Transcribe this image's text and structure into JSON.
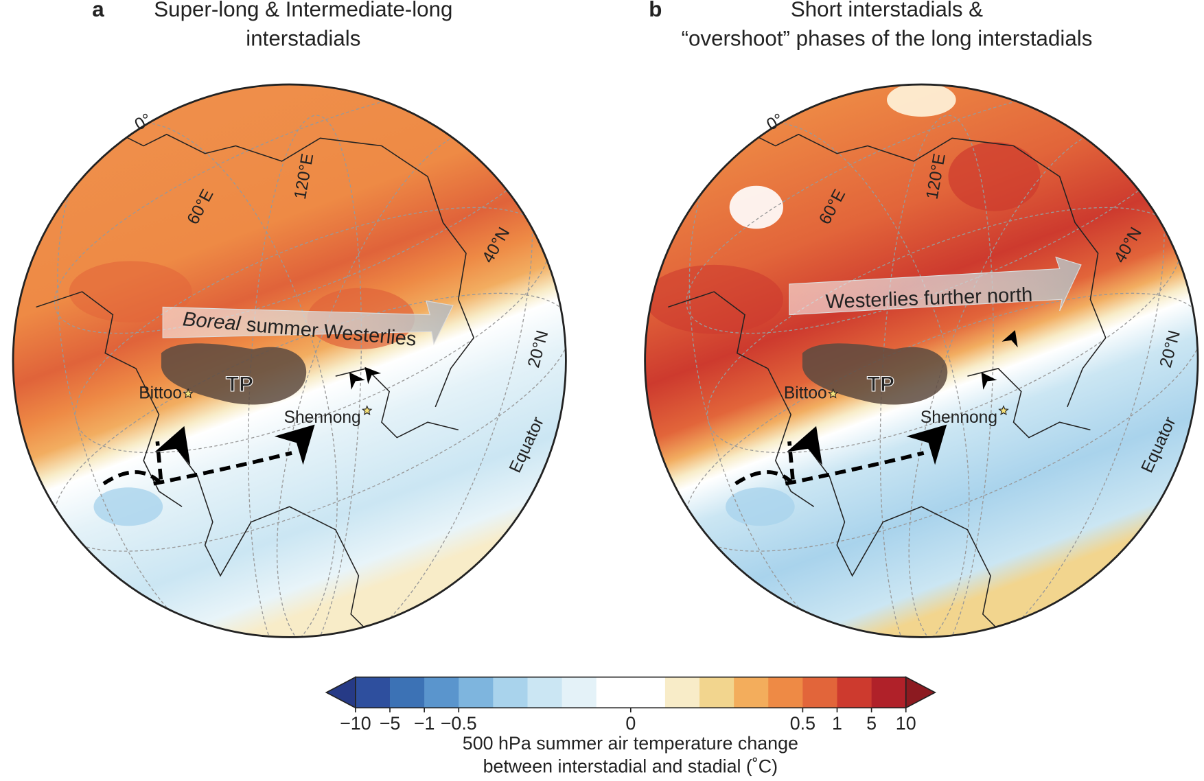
{
  "panels": [
    {
      "letter": "a",
      "title": [
        "Super-long & Intermediate-long",
        "interstadials"
      ],
      "grid_labels": [
        "0°",
        "60°E",
        "120°E",
        "40°N",
        "20°N",
        "Equator"
      ],
      "sites": [
        "Bittoo",
        "Shennong"
      ],
      "plateau": "TP",
      "westerlies_label": [
        "Boreal",
        "summer Westerlies"
      ]
    },
    {
      "letter": "b",
      "title": [
        "Short interstadials &",
        "“overshoot” phases of the long interstadials"
      ],
      "grid_labels": [
        "0°",
        "60°E",
        "120°E",
        "40°N",
        "20°N",
        "Equator"
      ],
      "sites": [
        "Bittoo",
        "Shennong"
      ],
      "plateau": "TP",
      "westerlies_label": [
        "Westerlies further north"
      ]
    }
  ],
  "colorbar": {
    "title": [
      "500 hPa summer air temperature change",
      "between interstadial and stadial (˚C)"
    ],
    "boundaries": [
      -10,
      -5,
      -1,
      -0.5,
      -0.4,
      -0.3,
      -0.2,
      -0.1,
      0,
      0.1,
      0.2,
      0.3,
      0.4,
      0.5,
      1,
      5,
      10
    ],
    "colors": [
      "#2e4f9e",
      "#3c72b5",
      "#5a95cd",
      "#7eb5de",
      "#a9d3ec",
      "#cbe6f3",
      "#e4f2f8",
      "#ffffff",
      "#ffffff",
      "#f8ecc8",
      "#f2d58e",
      "#f3ad5c",
      "#ee8a45",
      "#e2653a",
      "#cd3a2e",
      "#b02129"
    ],
    "under_color": "#263a86",
    "over_color": "#8c1a20",
    "ticks": [
      {
        "value": -10,
        "label": "−10"
      },
      {
        "value": -5,
        "label": "−5"
      },
      {
        "value": -1,
        "label": "−1"
      },
      {
        "value": -0.5,
        "label": "−0.5"
      },
      0,
      0.5,
      1,
      5,
      10
    ]
  }
}
